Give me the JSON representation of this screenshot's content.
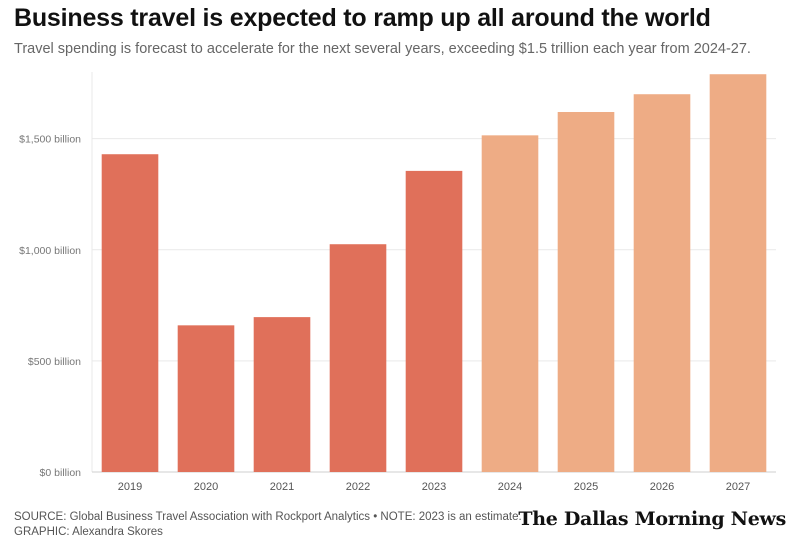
{
  "title": "Business travel is expected to ramp up all around the world",
  "subtitle": "Travel spending is forecast to accelerate for the next several years, exceeding $1.5 trillion each year from 2024-27.",
  "footer": {
    "source": "SOURCE: Global Business Travel Association with Rockport Analytics • NOTE: 2023 is an estimate.",
    "graphic": "GRAPHIC: Alexandra Skores"
  },
  "logo_text": "The Dallas Morning News",
  "colors": {
    "actual": "#e0705a",
    "forecast": "#eeac85",
    "grid": "#e9e9e9"
  },
  "chart_data": {
    "type": "bar",
    "categories": [
      "2019",
      "2020",
      "2021",
      "2022",
      "2023",
      "2024",
      "2025",
      "2026",
      "2027"
    ],
    "values": [
      1430,
      660,
      697,
      1025,
      1355,
      1515,
      1620,
      1700,
      1790
    ],
    "is_forecast": [
      false,
      false,
      false,
      false,
      false,
      true,
      true,
      true,
      true
    ],
    "ylim": [
      0,
      1800
    ],
    "yticks": [
      0,
      500,
      1000,
      1500
    ],
    "ytick_labels": [
      "$0 billion",
      "$500 billion",
      "$1,000 billion",
      "$1,500 billion"
    ],
    "grid": true,
    "legend": "none"
  }
}
